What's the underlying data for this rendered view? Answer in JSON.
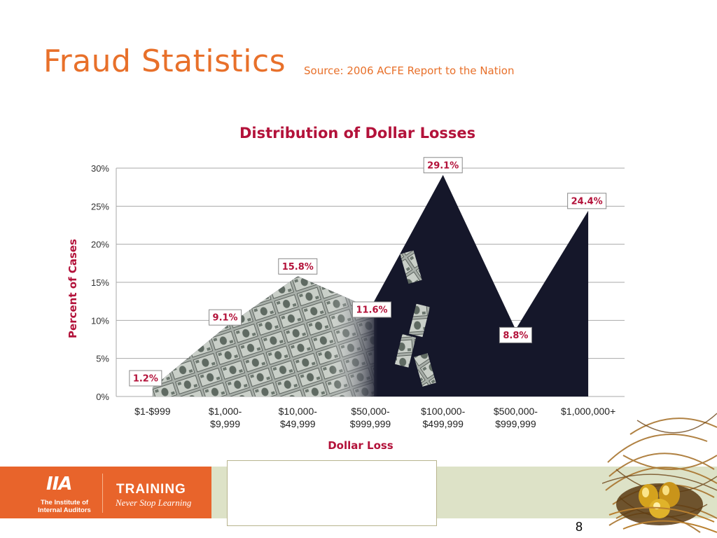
{
  "slide": {
    "title": "Fraud Statistics",
    "source": "Source:  2006 ACFE Report to the Nation",
    "page_number": "8"
  },
  "footer": {
    "logo_mark": "IIA",
    "org_name": "The Institute of Internal Auditors",
    "training": "TRAINING",
    "tagline": "Never Stop Learning"
  },
  "chart_data": {
    "type": "area",
    "title": "Distribution of Dollar Losses",
    "xlabel": "Dollar Loss",
    "ylabel": "Percent of Cases",
    "categories": [
      [
        "$1-$999"
      ],
      [
        "$1,000-",
        "$9,999"
      ],
      [
        "$10,000-",
        "$49,999"
      ],
      [
        "$50,000-",
        "$999,999"
      ],
      [
        "$100,000-",
        "$499,999"
      ],
      [
        "$500,000-",
        "$999,999"
      ],
      [
        "$1,000,000+"
      ]
    ],
    "values": [
      1.2,
      9.1,
      15.8,
      11.6,
      29.1,
      8.8,
      24.4
    ],
    "data_labels": [
      "1.2%",
      "9.1%",
      "15.8%",
      "11.6%",
      "29.1%",
      "8.8%",
      "24.4%"
    ],
    "yticks": [
      "0%",
      "5%",
      "10%",
      "15%",
      "20%",
      "25%",
      "30%"
    ],
    "ylim": [
      0,
      30
    ],
    "grid": true,
    "colors": {
      "title": "#b3123a",
      "labels": "#b3123a",
      "area_dark": "#15172a",
      "area_money": "#8e9690",
      "grid": "#a9a9a9"
    }
  }
}
